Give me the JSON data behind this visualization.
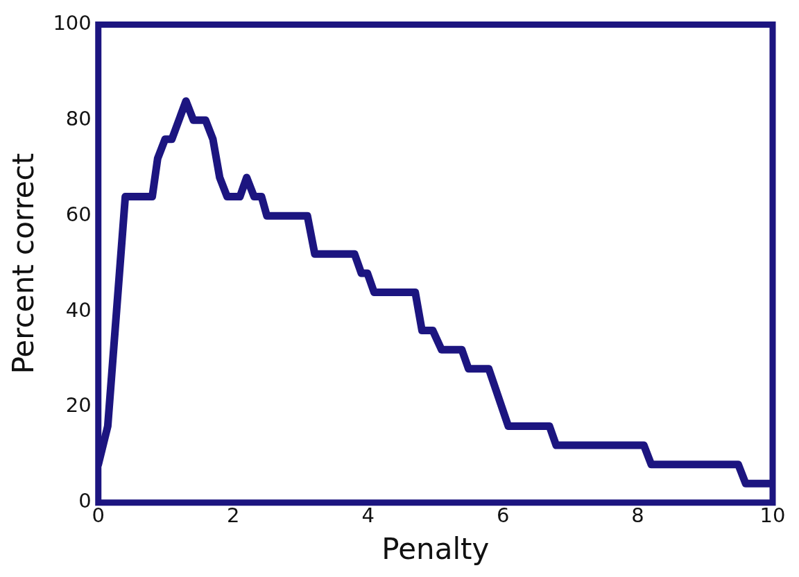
{
  "chart_data": {
    "type": "line",
    "xlabel": "Penalty",
    "ylabel": "Percent correct",
    "x": [
      0,
      0.14,
      0.4,
      0.8,
      0.88,
      0.99,
      1.09,
      1.3,
      1.41,
      1.59,
      1.7,
      1.8,
      1.91,
      2.1,
      2.2,
      2.31,
      2.42,
      2.5,
      3.1,
      3.21,
      3.8,
      3.9,
      3.99,
      4.09,
      4.7,
      4.8,
      4.96,
      5.09,
      5.39,
      5.49,
      5.79,
      6.08,
      6.69,
      6.79,
      8.09,
      8.2,
      9.49,
      9.6,
      10
    ],
    "series": [
      {
        "color": "#1c1580",
        "values": [
          8,
          16,
          64,
          64,
          72,
          76,
          76,
          84,
          80,
          80,
          76,
          68,
          64,
          64,
          68,
          64,
          64,
          60,
          60,
          52,
          52,
          48,
          48,
          44,
          44,
          36,
          36,
          32,
          32,
          28,
          28,
          16,
          16,
          12,
          12,
          8,
          8,
          4,
          4
        ]
      }
    ],
    "xlim": [
      0,
      10
    ],
    "xticks": [
      0,
      2,
      4,
      6,
      8,
      10
    ],
    "ylim": [
      0,
      100
    ],
    "yticks": [
      0,
      20,
      40,
      60,
      80,
      100
    ],
    "grid": false,
    "legend": false,
    "marker": "none",
    "line_style": "solid"
  }
}
